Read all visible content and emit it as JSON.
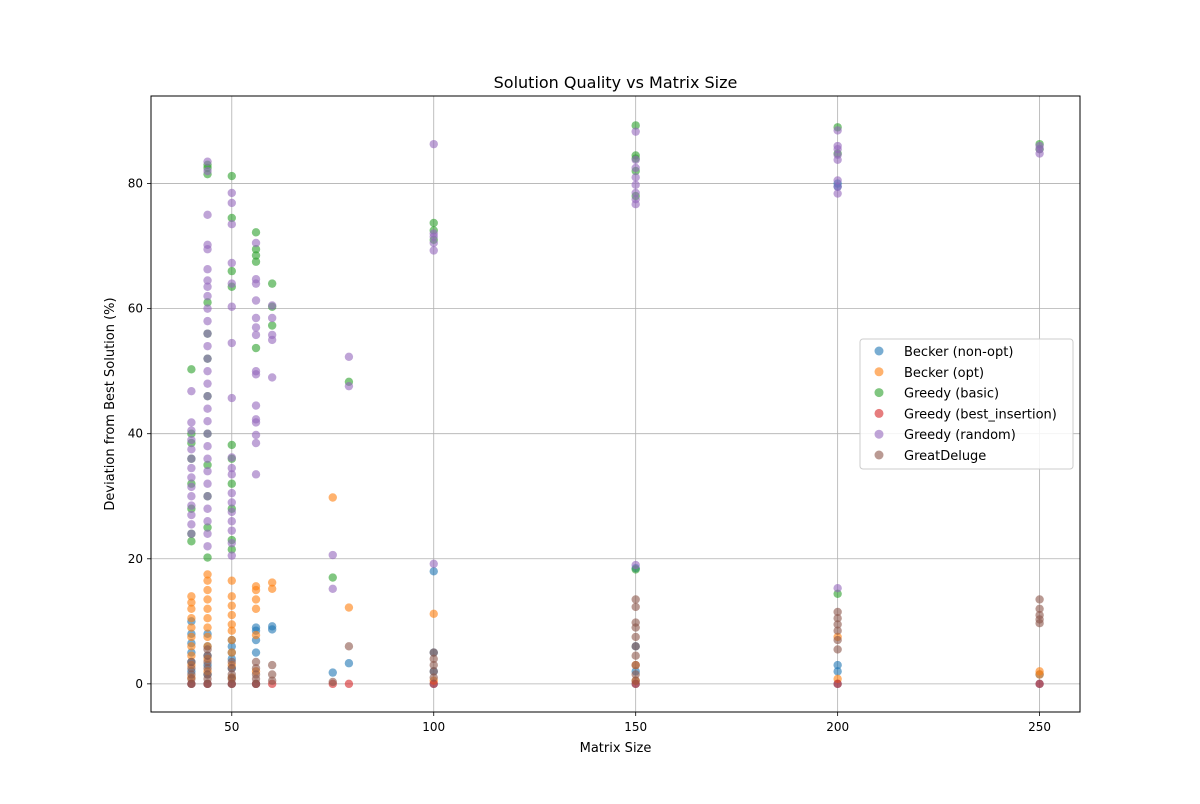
{
  "chart_data": {
    "type": "scatter",
    "title": "Solution Quality vs Matrix Size",
    "xlabel": "Matrix Size",
    "ylabel": "Deviation from Best Solution (%)",
    "xlim": [
      30,
      260
    ],
    "ylim": [
      -4.5,
      94
    ],
    "xticks": [
      50,
      100,
      150,
      200,
      250
    ],
    "yticks": [
      0,
      20,
      40,
      60,
      80
    ],
    "grid": true,
    "legend_position": "center-right",
    "series": [
      {
        "name": "Becker (non-opt)",
        "color": "#1f77b4",
        "points": [
          [
            40,
            0
          ],
          [
            40,
            2
          ],
          [
            40,
            3.5
          ],
          [
            40,
            5
          ],
          [
            40,
            6.5
          ],
          [
            40,
            8
          ],
          [
            40,
            10
          ],
          [
            44,
            0
          ],
          [
            44,
            1.5
          ],
          [
            44,
            3
          ],
          [
            44,
            4.5
          ],
          [
            44,
            6
          ],
          [
            44,
            8
          ],
          [
            50,
            0
          ],
          [
            50,
            1
          ],
          [
            50,
            2.5
          ],
          [
            50,
            4
          ],
          [
            50,
            5
          ],
          [
            50,
            6
          ],
          [
            50,
            7
          ],
          [
            56,
            0
          ],
          [
            56,
            5
          ],
          [
            56,
            7
          ],
          [
            56,
            8.5
          ],
          [
            56,
            9
          ],
          [
            60,
            8.7
          ],
          [
            60,
            9.2
          ],
          [
            75,
            1.8
          ],
          [
            79,
            3.3
          ],
          [
            100,
            0
          ],
          [
            100,
            2
          ],
          [
            100,
            5
          ],
          [
            100,
            18
          ],
          [
            150,
            0
          ],
          [
            150,
            2
          ],
          [
            150,
            6
          ],
          [
            150,
            18.5
          ],
          [
            200,
            0
          ],
          [
            200,
            2
          ],
          [
            200,
            3
          ],
          [
            200,
            79.5
          ],
          [
            200,
            80
          ],
          [
            250,
            0
          ],
          [
            250,
            1.5
          ]
        ]
      },
      {
        "name": "Becker (opt)",
        "color": "#ff7f0e",
        "points": [
          [
            40,
            1
          ],
          [
            40,
            3
          ],
          [
            40,
            4.5
          ],
          [
            40,
            6
          ],
          [
            40,
            7.5
          ],
          [
            40,
            9
          ],
          [
            40,
            10.5
          ],
          [
            40,
            12
          ],
          [
            40,
            13
          ],
          [
            40,
            14
          ],
          [
            44,
            2
          ],
          [
            44,
            4
          ],
          [
            44,
            6
          ],
          [
            44,
            7.5
          ],
          [
            44,
            9
          ],
          [
            44,
            10.5
          ],
          [
            44,
            12
          ],
          [
            44,
            13.5
          ],
          [
            44,
            15
          ],
          [
            44,
            16.5
          ],
          [
            44,
            17.5
          ],
          [
            50,
            1
          ],
          [
            50,
            3
          ],
          [
            50,
            5
          ],
          [
            50,
            7
          ],
          [
            50,
            8.5
          ],
          [
            50,
            9.5
          ],
          [
            50,
            11
          ],
          [
            50,
            12.5
          ],
          [
            50,
            14
          ],
          [
            50,
            16.5
          ],
          [
            56,
            2
          ],
          [
            56,
            7.8
          ],
          [
            56,
            12
          ],
          [
            56,
            13.5
          ],
          [
            56,
            15
          ],
          [
            56,
            15.6
          ],
          [
            60,
            15.2
          ],
          [
            60,
            16.2
          ],
          [
            75,
            29.8
          ],
          [
            79,
            12.2
          ],
          [
            100,
            0.5
          ],
          [
            100,
            11.2
          ],
          [
            150,
            0.5
          ],
          [
            150,
            3
          ],
          [
            200,
            0.8
          ],
          [
            200,
            7.5
          ],
          [
            250,
            1.5
          ],
          [
            250,
            2
          ]
        ]
      },
      {
        "name": "Greedy (basic)",
        "color": "#2ca02c",
        "points": [
          [
            40,
            22.8
          ],
          [
            40,
            24
          ],
          [
            40,
            28
          ],
          [
            40,
            32
          ],
          [
            40,
            36
          ],
          [
            40,
            38.5
          ],
          [
            40,
            40
          ],
          [
            40,
            50.3
          ],
          [
            44,
            20.2
          ],
          [
            44,
            25
          ],
          [
            44,
            30
          ],
          [
            44,
            35
          ],
          [
            44,
            40
          ],
          [
            44,
            46
          ],
          [
            44,
            52
          ],
          [
            44,
            56
          ],
          [
            44,
            61
          ],
          [
            44,
            81.5
          ],
          [
            44,
            82.5
          ],
          [
            44,
            83
          ],
          [
            50,
            21.5
          ],
          [
            50,
            23
          ],
          [
            50,
            28
          ],
          [
            50,
            32
          ],
          [
            50,
            36
          ],
          [
            50,
            38.2
          ],
          [
            50,
            63.5
          ],
          [
            50,
            66
          ],
          [
            50,
            74.5
          ],
          [
            50,
            81.2
          ],
          [
            56,
            53.7
          ],
          [
            56,
            67.5
          ],
          [
            56,
            68.5
          ],
          [
            56,
            69.5
          ],
          [
            56,
            72.2
          ],
          [
            60,
            57.3
          ],
          [
            60,
            60.3
          ],
          [
            60,
            64
          ],
          [
            75,
            17
          ],
          [
            79,
            48.3
          ],
          [
            100,
            71
          ],
          [
            100,
            72.5
          ],
          [
            100,
            73.7
          ],
          [
            150,
            18.3
          ],
          [
            150,
            78
          ],
          [
            150,
            82
          ],
          [
            150,
            84
          ],
          [
            150,
            84.5
          ],
          [
            150,
            89.3
          ],
          [
            200,
            14.4
          ],
          [
            200,
            84.8
          ],
          [
            200,
            89
          ],
          [
            250,
            85.5
          ],
          [
            250,
            86.3
          ]
        ]
      },
      {
        "name": "Greedy (best_insertion)",
        "color": "#d62728",
        "points": [
          [
            40,
            0
          ],
          [
            44,
            0
          ],
          [
            50,
            0
          ],
          [
            56,
            0
          ],
          [
            60,
            0
          ],
          [
            75,
            0
          ],
          [
            79,
            0
          ],
          [
            100,
            0
          ],
          [
            150,
            0
          ],
          [
            200,
            0
          ],
          [
            250,
            0
          ]
        ]
      },
      {
        "name": "Greedy (random)",
        "color": "#9467bd",
        "points": [
          [
            40,
            24
          ],
          [
            40,
            25.5
          ],
          [
            40,
            27
          ],
          [
            40,
            28.5
          ],
          [
            40,
            30
          ],
          [
            40,
            31.5
          ],
          [
            40,
            33
          ],
          [
            40,
            34.5
          ],
          [
            40,
            36
          ],
          [
            40,
            37.5
          ],
          [
            40,
            39
          ],
          [
            40,
            40.5
          ],
          [
            40,
            41.8
          ],
          [
            40,
            46.8
          ],
          [
            44,
            22
          ],
          [
            44,
            24
          ],
          [
            44,
            26
          ],
          [
            44,
            28
          ],
          [
            44,
            30
          ],
          [
            44,
            32
          ],
          [
            44,
            34
          ],
          [
            44,
            36
          ],
          [
            44,
            38
          ],
          [
            44,
            40
          ],
          [
            44,
            42
          ],
          [
            44,
            44
          ],
          [
            44,
            46
          ],
          [
            44,
            48
          ],
          [
            44,
            50
          ],
          [
            44,
            52
          ],
          [
            44,
            54
          ],
          [
            44,
            56
          ],
          [
            44,
            58
          ],
          [
            44,
            60
          ],
          [
            44,
            62
          ],
          [
            44,
            63.5
          ],
          [
            44,
            64.5
          ],
          [
            44,
            66.3
          ],
          [
            44,
            69.5
          ],
          [
            44,
            70.2
          ],
          [
            44,
            75
          ],
          [
            44,
            82
          ],
          [
            44,
            83.5
          ],
          [
            50,
            20.5
          ],
          [
            50,
            22.5
          ],
          [
            50,
            24.5
          ],
          [
            50,
            26
          ],
          [
            50,
            27.5
          ],
          [
            50,
            29
          ],
          [
            50,
            30.5
          ],
          [
            50,
            33.5
          ],
          [
            50,
            34.5
          ],
          [
            50,
            36.2
          ],
          [
            50,
            45.7
          ],
          [
            50,
            54.5
          ],
          [
            50,
            60.3
          ],
          [
            50,
            64
          ],
          [
            50,
            67.3
          ],
          [
            50,
            73.5
          ],
          [
            50,
            76.9
          ],
          [
            50,
            78.5
          ],
          [
            56,
            33.5
          ],
          [
            56,
            38.5
          ],
          [
            56,
            39.8
          ],
          [
            56,
            41.8
          ],
          [
            56,
            42.3
          ],
          [
            56,
            44.5
          ],
          [
            56,
            49.5
          ],
          [
            56,
            50
          ],
          [
            56,
            55.8
          ],
          [
            56,
            57
          ],
          [
            56,
            58.5
          ],
          [
            56,
            61.3
          ],
          [
            56,
            64
          ],
          [
            56,
            64.7
          ],
          [
            56,
            70.5
          ],
          [
            60,
            49
          ],
          [
            60,
            55
          ],
          [
            60,
            55.8
          ],
          [
            60,
            58.5
          ],
          [
            60,
            60.5
          ],
          [
            75,
            15.2
          ],
          [
            75,
            20.6
          ],
          [
            79,
            47.6
          ],
          [
            79,
            52.3
          ],
          [
            100,
            19.2
          ],
          [
            100,
            69.3
          ],
          [
            100,
            70.5
          ],
          [
            100,
            71.5
          ],
          [
            100,
            72
          ],
          [
            100,
            86.3
          ],
          [
            150,
            19
          ],
          [
            150,
            76.7
          ],
          [
            150,
            77.5
          ],
          [
            150,
            78.5
          ],
          [
            150,
            79.8
          ],
          [
            150,
            81
          ],
          [
            150,
            82.5
          ],
          [
            150,
            83.8
          ],
          [
            150,
            88.3
          ],
          [
            200,
            15.3
          ],
          [
            200,
            78.4
          ],
          [
            200,
            79.5
          ],
          [
            200,
            80.5
          ],
          [
            200,
            83.8
          ],
          [
            200,
            84.6
          ],
          [
            200,
            85.5
          ],
          [
            200,
            86
          ],
          [
            200,
            88.5
          ],
          [
            250,
            84.8
          ],
          [
            250,
            85.5
          ],
          [
            250,
            86
          ]
        ]
      },
      {
        "name": "GreatDeluge",
        "color": "#8c564b",
        "points": [
          [
            40,
            0
          ],
          [
            40,
            0.8
          ],
          [
            40,
            1.5
          ],
          [
            40,
            2.5
          ],
          [
            40,
            3.5
          ],
          [
            44,
            0
          ],
          [
            44,
            0.8
          ],
          [
            44,
            1.5
          ],
          [
            44,
            2.5
          ],
          [
            44,
            3.5
          ],
          [
            44,
            4.5
          ],
          [
            44,
            5.5
          ],
          [
            50,
            0
          ],
          [
            50,
            0.8
          ],
          [
            50,
            1.5
          ],
          [
            50,
            2.5
          ],
          [
            50,
            3.5
          ],
          [
            56,
            0
          ],
          [
            56,
            0.8
          ],
          [
            56,
            1.5
          ],
          [
            56,
            2.5
          ],
          [
            56,
            3.5
          ],
          [
            60,
            0.5
          ],
          [
            60,
            1.5
          ],
          [
            60,
            3
          ],
          [
            75,
            0.3
          ],
          [
            79,
            6
          ],
          [
            100,
            1
          ],
          [
            100,
            2
          ],
          [
            100,
            3
          ],
          [
            100,
            4
          ],
          [
            100,
            5
          ],
          [
            150,
            0.5
          ],
          [
            150,
            1.5
          ],
          [
            150,
            3
          ],
          [
            150,
            4.5
          ],
          [
            150,
            6
          ],
          [
            150,
            7.5
          ],
          [
            150,
            9
          ],
          [
            150,
            9.8
          ],
          [
            150,
            12.3
          ],
          [
            150,
            13.5
          ],
          [
            200,
            5.5
          ],
          [
            200,
            7
          ],
          [
            200,
            8.5
          ],
          [
            200,
            9.5
          ],
          [
            200,
            10.5
          ],
          [
            200,
            11.5
          ],
          [
            250,
            9.7
          ],
          [
            250,
            10.3
          ],
          [
            250,
            11
          ],
          [
            250,
            12
          ],
          [
            250,
            13.5
          ]
        ]
      }
    ]
  }
}
